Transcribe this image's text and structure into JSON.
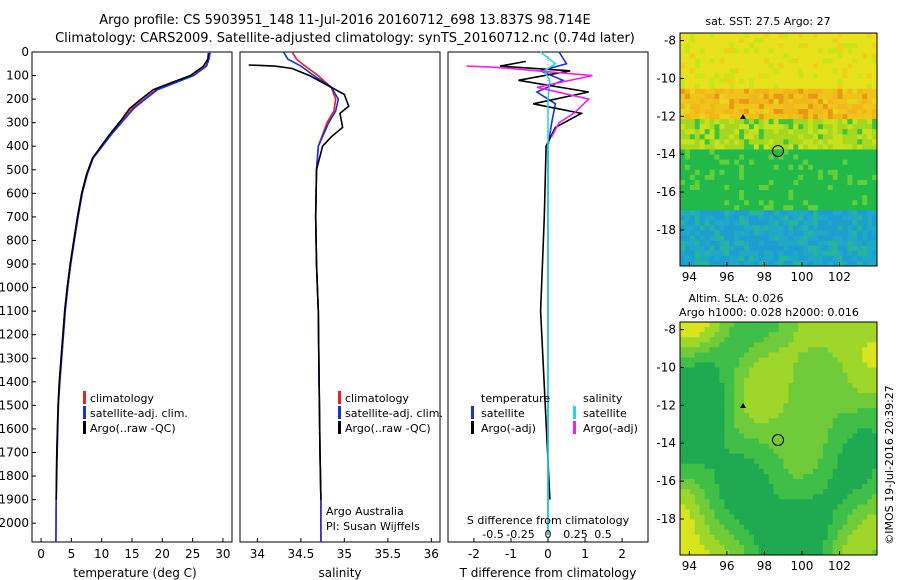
{
  "title": {
    "line1": "Argo profile: CS 5903951_148 11-Jul-2016 20160712_698 13.837S 98.714E",
    "line2": "Climatology: CARS2009. Satellite-adjusted climatology: synTS_20160712.nc (0.74d later)"
  },
  "colors": {
    "climatology": "#e8202a",
    "satellite": "#1f2fd6",
    "argo": "#000000",
    "sal_satellite": "#22d8e6",
    "sal_argo": "#ee22ee"
  },
  "depth_axis": {
    "ylim": [
      0,
      2080
    ],
    "ticks": [
      0,
      100,
      200,
      300,
      400,
      500,
      600,
      700,
      800,
      900,
      1000,
      1100,
      1200,
      1300,
      1400,
      1500,
      1600,
      1700,
      1800,
      1900,
      2000
    ]
  },
  "chart_data": [
    {
      "type": "line",
      "name": "temperature",
      "xlabel": "temperature (deg C)",
      "xlim": [
        -1.5,
        31.5
      ],
      "xticks": [
        0,
        5,
        10,
        15,
        20,
        25,
        30
      ],
      "ylabel": "depth",
      "series": [
        {
          "name": "climatology",
          "x": [
            27.8,
            27.6,
            27.2,
            25,
            22,
            19,
            17,
            15,
            13.5,
            11.5,
            10,
            8.5,
            7.5,
            6.7,
            6,
            5.4,
            4.8,
            4.3,
            3.9,
            3.6,
            3.3,
            3,
            2.8,
            2.6,
            2.5,
            2.45
          ],
          "depth": [
            0,
            30,
            60,
            100,
            130,
            160,
            200,
            240,
            290,
            350,
            400,
            450,
            520,
            600,
            700,
            800,
            900,
            1000,
            1100,
            1200,
            1300,
            1400,
            1500,
            1700,
            1900,
            2080
          ]
        },
        {
          "name": "satellite-adj. clim.",
          "x": [
            27.9,
            27.7,
            27.3,
            25.2,
            22.2,
            19.2,
            17.2,
            15.3,
            13.6,
            11.6,
            10.1,
            8.6,
            7.6,
            6.8,
            6.1,
            5.5,
            4.9,
            4.4,
            4,
            3.7,
            3.4,
            3.1,
            2.85,
            2.65,
            2.5,
            2.45
          ],
          "depth": [
            0,
            30,
            60,
            100,
            130,
            160,
            200,
            240,
            290,
            350,
            400,
            450,
            520,
            600,
            700,
            800,
            900,
            1000,
            1100,
            1200,
            1300,
            1400,
            1500,
            1700,
            1900,
            2080
          ]
        },
        {
          "name": "Argo(..raw -QC)",
          "x": [
            27.6,
            27.5,
            26.8,
            24.6,
            21.5,
            18.5,
            16.5,
            14.6,
            13.2,
            11.3,
            9.9,
            8.5,
            7.5,
            6.7,
            6,
            5.4,
            4.8,
            4.3,
            3.9,
            3.6,
            3.3,
            3,
            2.8,
            2.6,
            2.5
          ],
          "depth": [
            5,
            30,
            60,
            100,
            130,
            160,
            200,
            240,
            290,
            350,
            400,
            450,
            520,
            600,
            700,
            800,
            900,
            1000,
            1100,
            1200,
            1300,
            1400,
            1500,
            1700,
            1900
          ]
        }
      ],
      "legend": [
        "climatology",
        "satellite-adj. clim.",
        "Argo(..raw -QC)"
      ],
      "legend_position": "lower-center"
    },
    {
      "type": "line",
      "name": "salinity",
      "xlabel": "salinity",
      "xlim": [
        33.8,
        36.1
      ],
      "xticks": [
        34,
        34.5,
        35,
        35.5,
        36
      ],
      "xtick_labels": [
        "34",
        "34.5",
        "35",
        "35.5",
        "36"
      ],
      "series": [
        {
          "name": "climatology",
          "x": [
            34.4,
            34.45,
            34.55,
            34.7,
            34.85,
            34.9,
            34.88,
            34.8,
            34.75,
            34.7,
            34.68,
            34.67,
            34.68,
            34.7,
            34.71,
            34.72,
            34.73,
            34.73
          ],
          "depth": [
            0,
            30,
            60,
            100,
            150,
            200,
            250,
            300,
            350,
            400,
            500,
            700,
            900,
            1100,
            1400,
            1700,
            1900,
            2080
          ]
        },
        {
          "name": "satellite-adj. clim.",
          "x": [
            34.3,
            34.35,
            34.5,
            34.65,
            34.85,
            34.93,
            34.9,
            34.82,
            34.76,
            34.7,
            34.68,
            34.67,
            34.68,
            34.7,
            34.71,
            34.72,
            34.73,
            34.73
          ],
          "depth": [
            0,
            30,
            60,
            100,
            150,
            200,
            250,
            300,
            350,
            400,
            500,
            700,
            900,
            1100,
            1400,
            1700,
            1900,
            2080
          ]
        },
        {
          "name": "Argo(..raw -QC)",
          "x": [
            33.9,
            34.2,
            34.4,
            34.6,
            34.8,
            35,
            35.05,
            34.95,
            34.98,
            34.85,
            34.75,
            34.68,
            34.67,
            34.68,
            34.7,
            34.71,
            34.72,
            34.73
          ],
          "depth": [
            55,
            60,
            70,
            100,
            140,
            180,
            230,
            260,
            320,
            360,
            400,
            500,
            700,
            900,
            1100,
            1400,
            1700,
            1900
          ]
        }
      ],
      "legend": [
        "climatology",
        "satellite-adj. clim.",
        "Argo(..raw -QC)"
      ],
      "legend_position": "lower-center",
      "annotations": [
        "Argo Australia",
        "PI: Susan Wijffels"
      ]
    },
    {
      "type": "line",
      "name": "differences",
      "xlabel": "T difference from climatology",
      "xlabel_top": "S difference from climatology",
      "xlim": [
        -2.7,
        2.7
      ],
      "xticks": [
        -2,
        -1,
        0,
        1,
        2
      ],
      "top_ticks": [
        -0.5,
        -0.25,
        0,
        0.25,
        0.5
      ],
      "top_tick_labels": [
        "-0.5",
        "-0.25",
        "0",
        "0.25",
        "0.5"
      ],
      "series": [
        {
          "name": "temperature satellite",
          "x": [
            0.3,
            0.5,
            -0.2,
            0.4,
            -0.3,
            0.2,
            0.1,
            0,
            0,
            0,
            0,
            0
          ],
          "depth": [
            0,
            50,
            80,
            120,
            170,
            220,
            300,
            400,
            700,
            1000,
            1500,
            2050
          ]
        },
        {
          "name": "temperature Argo(-adj)",
          "x": [
            -0.6,
            -1.3,
            0.6,
            -0.8,
            1.1,
            -0.4,
            0.9,
            0.2,
            -0.05,
            -0.1,
            -0.2,
            0.05
          ],
          "depth": [
            40,
            60,
            80,
            120,
            170,
            220,
            260,
            320,
            400,
            700,
            1100,
            1900
          ]
        },
        {
          "name": "salinity satellite",
          "x": [
            -0.2,
            0.2,
            -0.1,
            0.05,
            0,
            0,
            0,
            0
          ],
          "depth": [
            0,
            50,
            80,
            120,
            200,
            400,
            1000,
            2050
          ]
        },
        {
          "name": "salinity Argo(-adj)",
          "x": [
            -2.2,
            -1.4,
            1.2,
            -0.3,
            1.1,
            0.7,
            0.3,
            0.1
          ],
          "depth": [
            60,
            65,
            100,
            150,
            200,
            260,
            300,
            360
          ]
        }
      ],
      "legend_left_title": "temperature",
      "legend_right_title": "salinity",
      "legend": [
        "satellite",
        "Argo(-adj)",
        "satellite",
        "Argo(-adj)"
      ],
      "legend_position": "lower-center"
    },
    {
      "type": "heatmap",
      "name": "sat SST map",
      "title": "sat. SST: 27.5 Argo: 27",
      "xticks": [
        94,
        96,
        98,
        100,
        102
      ],
      "yticks": [
        -8,
        -10,
        -12,
        -14,
        -16,
        -18
      ],
      "xlim": [
        93.5,
        104
      ],
      "ylim": [
        -19.9,
        -7.6
      ],
      "marker": {
        "lon": 98.714,
        "lat": -13.837
      },
      "triangle": {
        "lon": 96.8,
        "lat": -12.2
      }
    },
    {
      "type": "heatmap",
      "name": "SLA map",
      "title_line1": "Altim. SLA: 0.026",
      "title_line2": "Argo h1000: 0.028 h2000: 0.016",
      "xticks": [
        94,
        96,
        98,
        100,
        102
      ],
      "yticks": [
        -8,
        -10,
        -12,
        -14,
        -16,
        -18
      ],
      "xlim": [
        93.5,
        104
      ],
      "ylim": [
        -19.9,
        -7.6
      ],
      "marker": {
        "lon": 98.714,
        "lat": -13.837
      },
      "triangle": {
        "lon": 96.8,
        "lat": -12.2
      }
    }
  ],
  "credit": "©IMOS 19-Jul-2016 20:39:27"
}
